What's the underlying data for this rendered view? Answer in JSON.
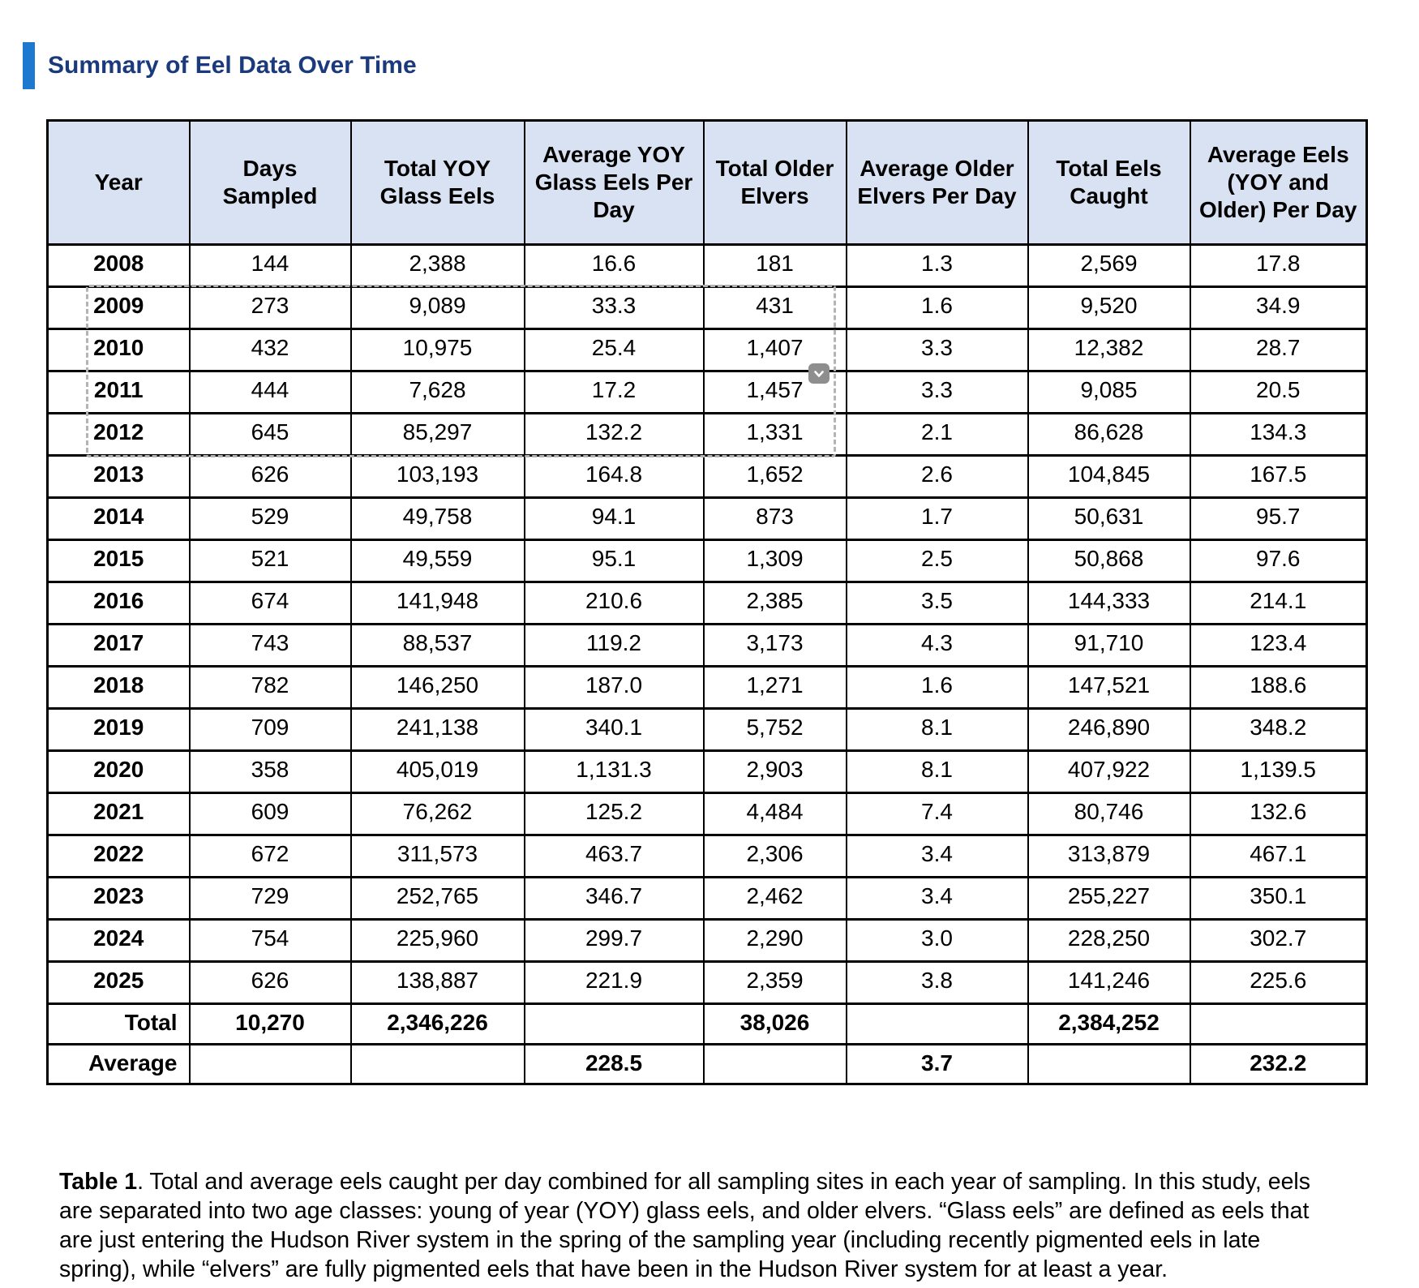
{
  "section": {
    "title": "Summary of Eel Data Over Time",
    "accent_color": "#1c79cf",
    "title_color": "#1a3a7c"
  },
  "table": {
    "header_bg": "#d9e2f3",
    "columns": [
      "Year",
      "Days Sampled",
      "Total YOY Glass Eels",
      "Average YOY Glass Eels Per Day",
      "Total Older Elvers",
      "Average Older Elvers Per Day",
      "Total Eels Caught",
      "Average Eels (YOY and Older) Per Day"
    ],
    "rows": [
      {
        "year": "2008",
        "values": [
          "144",
          "2,388",
          "16.6",
          "181",
          "1.3",
          "2,569",
          "17.8"
        ]
      },
      {
        "year": "2009",
        "values": [
          "273",
          "9,089",
          "33.3",
          "431",
          "1.6",
          "9,520",
          "34.9"
        ]
      },
      {
        "year": "2010",
        "values": [
          "432",
          "10,975",
          "25.4",
          "1,407",
          "3.3",
          "12,382",
          "28.7"
        ]
      },
      {
        "year": "2011",
        "values": [
          "444",
          "7,628",
          "17.2",
          "1,457",
          "3.3",
          "9,085",
          "20.5"
        ]
      },
      {
        "year": "2012",
        "values": [
          "645",
          "85,297",
          "132.2",
          "1,331",
          "2.1",
          "86,628",
          "134.3"
        ]
      },
      {
        "year": "2013",
        "values": [
          "626",
          "103,193",
          "164.8",
          "1,652",
          "2.6",
          "104,845",
          "167.5"
        ]
      },
      {
        "year": "2014",
        "values": [
          "529",
          "49,758",
          "94.1",
          "873",
          "1.7",
          "50,631",
          "95.7"
        ]
      },
      {
        "year": "2015",
        "values": [
          "521",
          "49,559",
          "95.1",
          "1,309",
          "2.5",
          "50,868",
          "97.6"
        ]
      },
      {
        "year": "2016",
        "values": [
          "674",
          "141,948",
          "210.6",
          "2,385",
          "3.5",
          "144,333",
          "214.1"
        ]
      },
      {
        "year": "2017",
        "values": [
          "743",
          "88,537",
          "119.2",
          "3,173",
          "4.3",
          "91,710",
          "123.4"
        ]
      },
      {
        "year": "2018",
        "values": [
          "782",
          "146,250",
          "187.0",
          "1,271",
          "1.6",
          "147,521",
          "188.6"
        ]
      },
      {
        "year": "2019",
        "values": [
          "709",
          "241,138",
          "340.1",
          "5,752",
          "8.1",
          "246,890",
          "348.2"
        ]
      },
      {
        "year": "2020",
        "values": [
          "358",
          "405,019",
          "1,131.3",
          "2,903",
          "8.1",
          "407,922",
          "1,139.5"
        ]
      },
      {
        "year": "2021",
        "values": [
          "609",
          "76,262",
          "125.2",
          "4,484",
          "7.4",
          "80,746",
          "132.6"
        ]
      },
      {
        "year": "2022",
        "values": [
          "672",
          "311,573",
          "463.7",
          "2,306",
          "3.4",
          "313,879",
          "467.1"
        ]
      },
      {
        "year": "2023",
        "values": [
          "729",
          "252,765",
          "346.7",
          "2,462",
          "3.4",
          "255,227",
          "350.1"
        ]
      },
      {
        "year": "2024",
        "values": [
          "754",
          "225,960",
          "299.7",
          "2,290",
          "3.0",
          "228,250",
          "302.7"
        ]
      },
      {
        "year": "2025",
        "values": [
          "626",
          "138,887",
          "221.9",
          "2,359",
          "3.8",
          "141,246",
          "225.6"
        ]
      }
    ],
    "total_row": {
      "label": "Total",
      "values": [
        "10,270",
        "2,346,226",
        "",
        "38,026",
        "",
        "2,384,252",
        ""
      ]
    },
    "average_row": {
      "label": "Average",
      "values": [
        "",
        "",
        "228.5",
        "",
        "3.7",
        "",
        "232.2"
      ]
    }
  },
  "selection": {
    "chevron_icon": "chevron-down",
    "dash_color": "#b4b4b4",
    "button_color": "#8e8e8e"
  },
  "caption": {
    "label": "Table 1",
    "text": ". Total and average eels caught per day combined for all sampling sites in each year of sampling. In this study, eels are separated into two age classes: young of year (YOY) glass eels, and older elvers. “Glass eels” are defined as eels that are just entering the Hudson River system in the spring of the sampling year (including recently pigmented eels in late spring), while “elvers” are fully pigmented eels that have been in the Hudson River system for at least a year."
  }
}
